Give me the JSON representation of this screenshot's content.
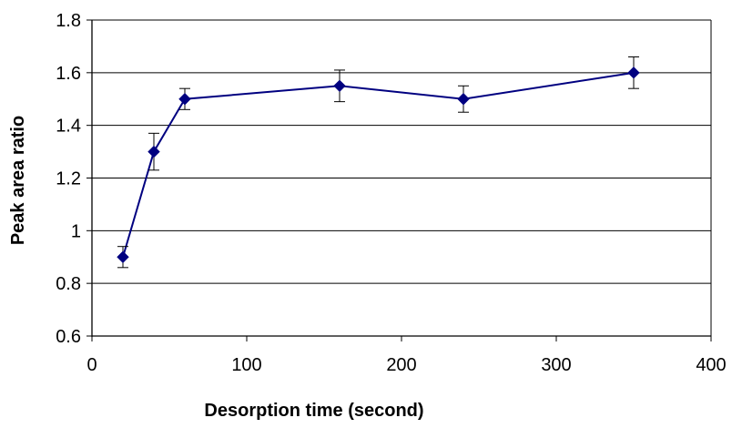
{
  "chart_data": {
    "type": "line",
    "title": "",
    "xlabel": "Desorption time (second)",
    "ylabel": "Peak area ratio",
    "xlim": [
      0,
      400
    ],
    "ylim": [
      0.6,
      1.8
    ],
    "x_ticks": [
      0,
      100,
      200,
      300,
      400
    ],
    "y_ticks": [
      0.6,
      0.8,
      1,
      1.2,
      1.4,
      1.6,
      1.8
    ],
    "x_tick_labels": [
      "0",
      "100",
      "200",
      "300",
      "400"
    ],
    "y_tick_labels": [
      "0.6",
      "0.8",
      "1",
      "1.2",
      "1.4",
      "1.6",
      "1.8"
    ],
    "grid": "horizontal",
    "legend": "none",
    "series": [
      {
        "color": "#000080",
        "marker": "diamond",
        "x": [
          20,
          40,
          60,
          160,
          240,
          350
        ],
        "y": [
          0.9,
          1.3,
          1.5,
          1.55,
          1.5,
          1.6
        ],
        "error": [
          0.04,
          0.07,
          0.04,
          0.06,
          0.05,
          0.06
        ]
      }
    ]
  }
}
